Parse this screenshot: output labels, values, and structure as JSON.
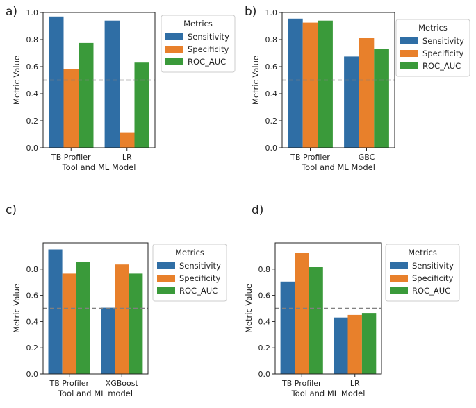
{
  "colors": {
    "sensitivity": "#2f6ea5",
    "specificity": "#e8802b",
    "roc_auc": "#3a9a3a",
    "threshold": "#808080"
  },
  "chart_data": [
    {
      "panel_label": "a)",
      "type": "bar",
      "categories": [
        "TB Profiler",
        "LR"
      ],
      "series": [
        {
          "name": "Sensitivity",
          "values": [
            0.97,
            0.94
          ]
        },
        {
          "name": "Specificity",
          "values": [
            0.58,
            0.115
          ]
        },
        {
          "name": "ROC_AUC",
          "values": [
            0.775,
            0.63
          ]
        }
      ],
      "xlabel": "Tool and ML Model",
      "ylabel": "Metric Value",
      "ylim": [
        0,
        1.0
      ],
      "yticks": [
        "0.0",
        "0.2",
        "0.4",
        "0.6",
        "0.8",
        "1.0"
      ],
      "threshold": 0.5,
      "legend_title": "Metrics",
      "legend_position": "outside-right-top"
    },
    {
      "panel_label": "b)",
      "type": "bar",
      "categories": [
        "TB Profiler",
        "GBC"
      ],
      "series": [
        {
          "name": "Sensitivity",
          "values": [
            0.955,
            0.675
          ]
        },
        {
          "name": "Specificity",
          "values": [
            0.925,
            0.81
          ]
        },
        {
          "name": "ROC_AUC",
          "values": [
            0.94,
            0.73
          ]
        }
      ],
      "xlabel": "Tool and ML Model",
      "ylabel": "Metric Value",
      "ylim": [
        0,
        1.0
      ],
      "yticks": [
        "0.0",
        "0.2",
        "0.4",
        "0.6",
        "0.8",
        "1.0"
      ],
      "threshold": 0.5,
      "legend_title": "Metrics",
      "legend_position": "outside-right-top"
    },
    {
      "panel_label": "c)",
      "type": "bar",
      "categories": [
        "TB Profiler",
        "XGBoost"
      ],
      "series": [
        {
          "name": "Sensitivity",
          "values": [
            0.95,
            0.505
          ]
        },
        {
          "name": "Specificity",
          "values": [
            0.765,
            0.835
          ]
        },
        {
          "name": "ROC_AUC",
          "values": [
            0.855,
            0.765
          ]
        }
      ],
      "xlabel": "Tool and ML model",
      "ylabel": "Metric Value",
      "ylim": [
        0,
        1.0
      ],
      "yticks": [
        "0.0",
        "0.2",
        "0.4",
        "0.6",
        "0.8"
      ],
      "threshold": 0.5,
      "legend_title": "Metrics",
      "legend_position": "outside-right-top"
    },
    {
      "panel_label": "d)",
      "type": "bar",
      "categories": [
        "TB Profiler",
        "LR"
      ],
      "series": [
        {
          "name": "Sensitivity",
          "values": [
            0.705,
            0.43
          ]
        },
        {
          "name": "Specificity",
          "values": [
            0.925,
            0.45
          ]
        },
        {
          "name": "ROC_AUC",
          "values": [
            0.815,
            0.465
          ]
        }
      ],
      "xlabel": "Tool and ML Model",
      "ylabel": "Metric Value",
      "ylim": [
        0,
        1.0
      ],
      "yticks": [
        "0.0",
        "0.2",
        "0.4",
        "0.6",
        "0.8"
      ],
      "threshold": 0.5,
      "legend_title": "Metrics",
      "legend_position": "outside-right-top"
    }
  ]
}
